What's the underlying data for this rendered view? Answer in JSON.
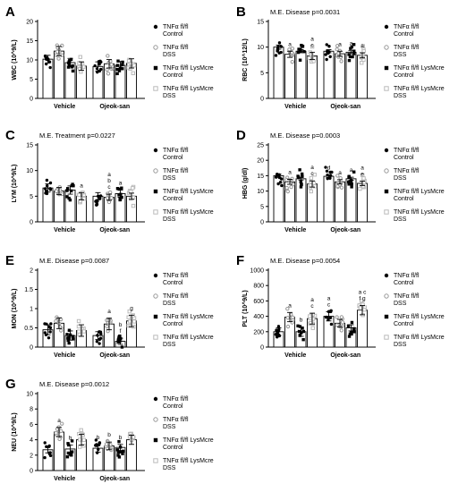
{
  "legend": [
    {
      "line1": "TNFα fl/fl",
      "line2": "Control",
      "marker": "filled-circle"
    },
    {
      "line1": "TNFα fl/fl",
      "line2": "DSS",
      "marker": "gray-circle"
    },
    {
      "line1": "TNFα fl/fl LysMcre",
      "line2": "Control",
      "marker": "filled-square"
    },
    {
      "line1": "TNFα fl/fl LysMcre",
      "line2": "DSS",
      "marker": "open-square"
    }
  ],
  "colors": {
    "black": "#000000",
    "gray": "#999999",
    "dark_gray": "#555555",
    "light_gray": "#bbbbbb",
    "bar": "#ffffff"
  },
  "chart_data": [
    {
      "panel": "A",
      "type": "bar",
      "title": "",
      "ylabel": "WBC (10^9/L)",
      "ylim": [
        0,
        20
      ],
      "yticks": [
        0,
        5,
        10,
        15,
        20
      ],
      "categories": [
        "Vehicle",
        "Ojeok-san"
      ],
      "series": [
        {
          "name": "TNFα fl/fl Control",
          "values": [
            10.2,
            8.3
          ],
          "errors": [
            1.0,
            1.2
          ]
        },
        {
          "name": "TNFα fl/fl DSS",
          "values": [
            12.3,
            9.0
          ],
          "errors": [
            1.2,
            1.1
          ]
        },
        {
          "name": "TNFα fl/fl LysMcre Control",
          "values": [
            9.3,
            8.6
          ],
          "errors": [
            1.1,
            1.0
          ]
        },
        {
          "name": "TNFα fl/fl LysMcre DSS",
          "values": [
            8.4,
            9.1
          ],
          "errors": [
            1.1,
            1.2
          ]
        }
      ],
      "letters": []
    },
    {
      "panel": "B",
      "type": "bar",
      "title": "M.E. Disease p=0.0031",
      "ylabel": "RBC (10^12/L)",
      "ylim": [
        0,
        15
      ],
      "yticks": [
        0,
        5,
        10,
        15
      ],
      "categories": [
        "Vehicle",
        "Ojeok-san"
      ],
      "series": [
        {
          "name": "TNFα fl/fl Control",
          "values": [
            10.0,
            9.2
          ],
          "errors": [
            0.4,
            0.3
          ]
        },
        {
          "name": "TNFα fl/fl DSS",
          "values": [
            8.6,
            8.7
          ],
          "errors": [
            0.6,
            0.5
          ]
        },
        {
          "name": "TNFα fl/fl LysMcre Control",
          "values": [
            9.2,
            9.0
          ],
          "errors": [
            0.3,
            0.3
          ]
        },
        {
          "name": "TNFα fl/fl LysMcre DSS",
          "values": [
            8.3,
            8.4
          ],
          "errors": [
            0.7,
            0.5
          ]
        }
      ],
      "letters": [
        {
          "group": 0,
          "series": 1,
          "text": [
            "a"
          ]
        },
        {
          "group": 0,
          "series": 3,
          "text": [
            "a",
            "c"
          ]
        },
        {
          "group": 1,
          "series": 1,
          "text": [
            "a"
          ]
        },
        {
          "group": 1,
          "series": 2,
          "text": [
            "a"
          ]
        },
        {
          "group": 1,
          "series": 3,
          "text": [
            "a"
          ]
        }
      ]
    },
    {
      "panel": "C",
      "type": "bar",
      "title": "M.E. Treatment p=0.0227",
      "ylabel": "LYM (10^9/L)",
      "ylim": [
        0,
        15
      ],
      "yticks": [
        0,
        5,
        10,
        15
      ],
      "categories": [
        "Vehicle",
        "Ojeok-san"
      ],
      "series": [
        {
          "name": "TNFα fl/fl Control",
          "values": [
            6.6,
            5.0
          ],
          "errors": [
            0.8,
            0.7
          ]
        },
        {
          "name": "TNFα fl/fl DSS",
          "values": [
            6.0,
            4.8
          ],
          "errors": [
            0.7,
            0.6
          ]
        },
        {
          "name": "TNFα fl/fl LysMcre Control",
          "values": [
            6.2,
            5.5
          ],
          "errors": [
            0.8,
            0.7
          ]
        },
        {
          "name": "TNFα fl/fl LysMcre DSS",
          "values": [
            5.0,
            5.0
          ],
          "errors": [
            0.7,
            0.6
          ]
        }
      ],
      "letters": [
        {
          "group": 0,
          "series": 3,
          "text": [
            "a"
          ]
        },
        {
          "group": 1,
          "series": 1,
          "text": [
            "a",
            "b",
            "c"
          ]
        },
        {
          "group": 1,
          "series": 2,
          "text": [
            "a"
          ]
        }
      ]
    },
    {
      "panel": "D",
      "type": "bar",
      "title": "M.E. Disease p=0.0003",
      "ylabel": "HBG (g/dl)",
      "ylim": [
        0,
        25
      ],
      "yticks": [
        0,
        5,
        10,
        15,
        20,
        25
      ],
      "categories": [
        "Vehicle",
        "Ojeok-san"
      ],
      "series": [
        {
          "name": "TNFα fl/fl Control",
          "values": [
            15.0,
            14.8
          ],
          "errors": [
            0.5,
            0.4
          ]
        },
        {
          "name": "TNFα fl/fl DSS",
          "values": [
            13.0,
            13.0
          ],
          "errors": [
            0.8,
            0.7
          ]
        },
        {
          "name": "TNFα fl/fl LysMcre Control",
          "values": [
            14.0,
            14.0
          ],
          "errors": [
            0.4,
            0.5
          ]
        },
        {
          "name": "TNFα fl/fl LysMcre DSS",
          "values": [
            12.3,
            12.5
          ],
          "errors": [
            1.0,
            0.7
          ]
        }
      ],
      "letters": [
        {
          "group": 0,
          "series": 1,
          "text": [
            "a"
          ]
        },
        {
          "group": 0,
          "series": 3,
          "text": [
            "a",
            "c"
          ]
        },
        {
          "group": 1,
          "series": 0,
          "text": [
            "d"
          ]
        },
        {
          "group": 1,
          "series": 1,
          "text": [
            "a"
          ]
        },
        {
          "group": 1,
          "series": 2,
          "text": [
            "a"
          ]
        },
        {
          "group": 1,
          "series": 3,
          "text": [
            "a",
            "e"
          ]
        }
      ]
    },
    {
      "panel": "E",
      "type": "bar",
      "title": "M.E. Disease p=0.0087",
      "ylabel": "MON (10^9/L)",
      "ylim": [
        0,
        2.0
      ],
      "yticks": [
        0,
        0.5,
        1.0,
        1.5,
        2.0
      ],
      "categories": [
        "Vehicle",
        "Ojeok-san"
      ],
      "series": [
        {
          "name": "TNFα fl/fl Control",
          "values": [
            0.45,
            0.3
          ],
          "errors": [
            0.13,
            0.1
          ]
        },
        {
          "name": "TNFα fl/fl DSS",
          "values": [
            0.62,
            0.6
          ],
          "errors": [
            0.14,
            0.15
          ]
        },
        {
          "name": "TNFα fl/fl LysMcre Control",
          "values": [
            0.3,
            0.15
          ],
          "errors": [
            0.12,
            0.08
          ]
        },
        {
          "name": "TNFα fl/fl LysMcre DSS",
          "values": [
            0.43,
            0.68
          ],
          "errors": [
            0.15,
            0.15
          ]
        }
      ],
      "letters": [
        {
          "group": 1,
          "series": 1,
          "text": [
            "a"
          ]
        },
        {
          "group": 1,
          "series": 2,
          "text": [
            "b",
            "f"
          ]
        },
        {
          "group": 1,
          "series": 3,
          "text": [
            "g"
          ]
        }
      ]
    },
    {
      "panel": "F",
      "type": "bar",
      "title": "M.E. Disease p=0.0054",
      "ylabel": "PLT (10^9/L)",
      "ylim": [
        0,
        1000
      ],
      "yticks": [
        0,
        200,
        400,
        600,
        800,
        1000
      ],
      "categories": [
        "Vehicle",
        "Ojeok-san"
      ],
      "series": [
        {
          "name": "TNFα fl/fl Control",
          "values": [
            200,
            400
          ],
          "errors": [
            50,
            60
          ]
        },
        {
          "name": "TNFα fl/fl DSS",
          "values": [
            390,
            310
          ],
          "errors": [
            60,
            50
          ]
        },
        {
          "name": "TNFα fl/fl LysMcre Control",
          "values": [
            200,
            250
          ],
          "errors": [
            60,
            40
          ]
        },
        {
          "name": "TNFα fl/fl LysMcre DSS",
          "values": [
            370,
            480
          ],
          "errors": [
            70,
            60
          ]
        }
      ],
      "letters": [
        {
          "group": 0,
          "series": 1,
          "text": [
            "a"
          ]
        },
        {
          "group": 0,
          "series": 2,
          "text": [
            "b"
          ]
        },
        {
          "group": 0,
          "series": 3,
          "text": [
            "a",
            "c"
          ]
        },
        {
          "group": 1,
          "series": 0,
          "text": [
            "a",
            "c"
          ]
        },
        {
          "group": 1,
          "series": 3,
          "text": [
            "a c",
            "f g"
          ]
        }
      ]
    },
    {
      "panel": "G",
      "type": "bar",
      "title": "M.E. Disease p=0.0012",
      "ylabel": "NEU (10^9/L)",
      "ylim": [
        0,
        10
      ],
      "yticks": [
        0,
        2,
        4,
        6,
        8,
        10
      ],
      "categories": [
        "Vehicle",
        "Ojeok-san"
      ],
      "series": [
        {
          "name": "TNFα fl/fl Control",
          "values": [
            2.7,
            2.9
          ],
          "errors": [
            0.4,
            0.5
          ]
        },
        {
          "name": "TNFα fl/fl DSS",
          "values": [
            5.0,
            3.2
          ],
          "errors": [
            0.6,
            0.5
          ]
        },
        {
          "name": "TNFα fl/fl LysMcre Control",
          "values": [
            2.8,
            3.0
          ],
          "errors": [
            0.5,
            0.4
          ]
        },
        {
          "name": "TNFα fl/fl LysMcre DSS",
          "values": [
            4.0,
            4.0
          ],
          "errors": [
            0.7,
            0.6
          ]
        }
      ],
      "letters": [
        {
          "group": 0,
          "series": 1,
          "text": [
            "a"
          ]
        },
        {
          "group": 0,
          "series": 2,
          "text": [
            "b"
          ]
        },
        {
          "group": 1,
          "series": 0,
          "text": [
            "b"
          ]
        },
        {
          "group": 1,
          "series": 1,
          "text": [
            "b"
          ]
        },
        {
          "group": 1,
          "series": 2,
          "text": [
            "b"
          ]
        }
      ]
    }
  ]
}
